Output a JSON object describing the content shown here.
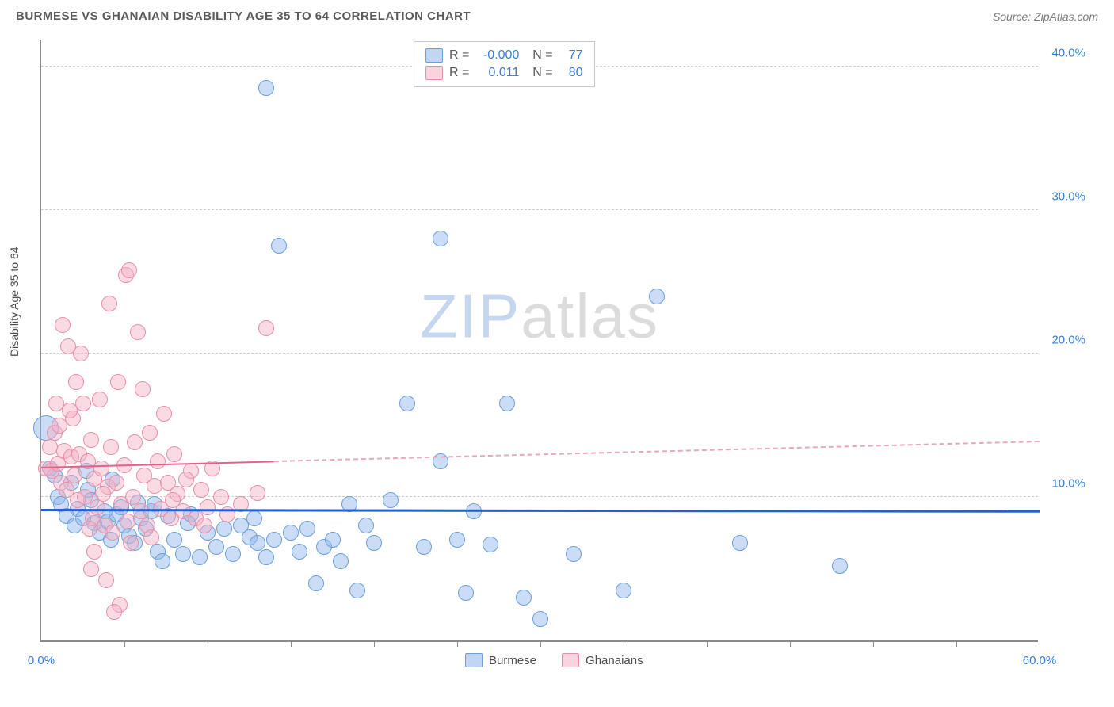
{
  "title": "BURMESE VS GHANAIAN DISABILITY AGE 35 TO 64 CORRELATION CHART",
  "source": "Source: ZipAtlas.com",
  "ylabel": "Disability Age 35 to 64",
  "watermark_a": "ZIP",
  "watermark_b": "atlas",
  "chart": {
    "type": "scatter",
    "xlim": [
      0,
      60
    ],
    "ylim": [
      0,
      42
    ],
    "y_ticks": [
      10,
      20,
      30,
      40
    ],
    "y_tick_labels": [
      "10.0%",
      "20.0%",
      "30.0%",
      "40.0%"
    ],
    "x_end_labels": {
      "min": "0.0%",
      "max": "60.0%"
    },
    "x_minor_ticks": [
      5,
      10,
      15,
      20,
      25,
      30,
      35,
      40,
      45,
      50,
      55
    ],
    "grid_color": "#d0d0d0",
    "background": "#ffffff",
    "axis_color": "#8a8a8a",
    "tick_label_color": "#3b7dd8",
    "point_radius": 10,
    "series": [
      {
        "name": "Burmese",
        "color_fill": "rgba(140,180,235,0.45)",
        "color_stroke": "#6a9fd8",
        "R": "-0.000",
        "N": "77",
        "trend": {
          "y_start": 9.0,
          "y_end": 8.9,
          "x_solid_end": 60,
          "color": "#2860c8"
        },
        "points": [
          [
            0.3,
            14.8,
            16
          ],
          [
            0.5,
            12.0
          ],
          [
            0.8,
            11.5
          ],
          [
            1.0,
            10.0
          ],
          [
            1.2,
            9.5
          ],
          [
            1.5,
            8.7
          ],
          [
            1.8,
            11.0
          ],
          [
            2.0,
            8.0
          ],
          [
            2.2,
            9.2
          ],
          [
            2.5,
            8.5
          ],
          [
            2.8,
            10.5
          ],
          [
            3.0,
            9.8
          ],
          [
            3.2,
            8.2
          ],
          [
            3.5,
            7.5
          ],
          [
            3.8,
            9.0
          ],
          [
            4.0,
            8.3
          ],
          [
            4.2,
            7.0
          ],
          [
            4.5,
            8.8
          ],
          [
            4.8,
            9.3
          ],
          [
            5.0,
            8.0
          ],
          [
            5.3,
            7.3
          ],
          [
            5.6,
            6.8
          ],
          [
            6.0,
            8.5
          ],
          [
            6.3,
            7.8
          ],
          [
            6.6,
            9.0
          ],
          [
            7.0,
            6.2
          ],
          [
            7.3,
            5.5
          ],
          [
            7.6,
            8.7
          ],
          [
            8.0,
            7.0
          ],
          [
            8.5,
            6.0
          ],
          [
            9.0,
            8.8
          ],
          [
            9.5,
            5.8
          ],
          [
            10.0,
            7.5
          ],
          [
            10.5,
            6.5
          ],
          [
            11.0,
            7.8
          ],
          [
            11.5,
            6.0
          ],
          [
            12.0,
            8.0
          ],
          [
            12.5,
            7.2
          ],
          [
            13.0,
            6.8
          ],
          [
            13.5,
            5.8
          ],
          [
            13.5,
            38.5
          ],
          [
            14.0,
            7.0
          ],
          [
            14.3,
            27.5
          ],
          [
            15.0,
            7.5
          ],
          [
            15.5,
            6.2
          ],
          [
            16.0,
            7.8
          ],
          [
            16.5,
            4.0
          ],
          [
            17.0,
            6.5
          ],
          [
            17.5,
            7.0
          ],
          [
            18.5,
            9.5
          ],
          [
            19.0,
            3.5
          ],
          [
            20.0,
            6.8
          ],
          [
            21.0,
            9.8
          ],
          [
            22.0,
            16.5
          ],
          [
            23.0,
            6.5
          ],
          [
            24.0,
            28.0
          ],
          [
            24.0,
            12.5
          ],
          [
            25.0,
            7.0
          ],
          [
            25.5,
            3.3
          ],
          [
            27.0,
            6.7
          ],
          [
            28.0,
            16.5
          ],
          [
            29.0,
            3.0
          ],
          [
            30.0,
            1.5
          ],
          [
            32.0,
            6.0
          ],
          [
            35.0,
            3.5
          ],
          [
            37.0,
            24.0
          ],
          [
            42.0,
            6.8
          ],
          [
            48.0,
            5.2
          ],
          [
            18.0,
            5.5
          ],
          [
            19.5,
            8.0
          ],
          [
            8.8,
            8.2
          ],
          [
            4.3,
            11.2
          ],
          [
            2.7,
            11.8
          ],
          [
            6.8,
            9.5
          ],
          [
            12.8,
            8.5
          ],
          [
            5.8,
            9.6
          ],
          [
            26.0,
            9.0
          ]
        ]
      },
      {
        "name": "Ghanaians",
        "color_fill": "rgba(245,175,195,0.45)",
        "color_stroke": "#e88fa8",
        "R": "0.011",
        "N": "80",
        "trend": {
          "y_start": 12.0,
          "y_end": 13.8,
          "x_solid_end": 14,
          "color": "#e85f8a"
        },
        "points": [
          [
            0.3,
            12.0
          ],
          [
            0.5,
            13.5
          ],
          [
            0.6,
            11.8
          ],
          [
            0.8,
            14.5
          ],
          [
            1.0,
            12.3
          ],
          [
            1.1,
            15.0
          ],
          [
            1.2,
            11.0
          ],
          [
            1.3,
            22.0
          ],
          [
            1.4,
            13.2
          ],
          [
            1.5,
            10.5
          ],
          [
            1.6,
            20.5
          ],
          [
            1.8,
            12.8
          ],
          [
            1.9,
            15.5
          ],
          [
            2.0,
            11.5
          ],
          [
            2.1,
            18.0
          ],
          [
            2.2,
            9.8
          ],
          [
            2.3,
            13.0
          ],
          [
            2.5,
            16.5
          ],
          [
            2.6,
            10.0
          ],
          [
            2.8,
            12.5
          ],
          [
            3.0,
            14.0
          ],
          [
            3.1,
            8.5
          ],
          [
            3.2,
            11.3
          ],
          [
            3.4,
            9.3
          ],
          [
            3.5,
            16.8
          ],
          [
            3.6,
            12.0
          ],
          [
            3.8,
            8.0
          ],
          [
            4.0,
            10.7
          ],
          [
            4.1,
            23.5
          ],
          [
            4.2,
            13.5
          ],
          [
            4.3,
            7.5
          ],
          [
            4.5,
            11.0
          ],
          [
            4.6,
            18.0
          ],
          [
            4.8,
            9.5
          ],
          [
            5.0,
            12.2
          ],
          [
            5.1,
            25.5
          ],
          [
            5.2,
            8.3
          ],
          [
            5.3,
            25.8
          ],
          [
            5.5,
            10.0
          ],
          [
            5.6,
            13.8
          ],
          [
            5.8,
            21.5
          ],
          [
            6.0,
            9.0
          ],
          [
            6.1,
            17.5
          ],
          [
            6.2,
            11.5
          ],
          [
            6.4,
            8.0
          ],
          [
            6.5,
            14.5
          ],
          [
            6.8,
            10.8
          ],
          [
            7.0,
            12.5
          ],
          [
            7.2,
            9.2
          ],
          [
            7.4,
            15.8
          ],
          [
            7.6,
            11.0
          ],
          [
            7.8,
            8.5
          ],
          [
            8.0,
            13.0
          ],
          [
            8.2,
            10.2
          ],
          [
            8.5,
            9.0
          ],
          [
            9.0,
            11.8
          ],
          [
            9.3,
            8.5
          ],
          [
            9.6,
            10.5
          ],
          [
            10.0,
            9.3
          ],
          [
            10.3,
            12.0
          ],
          [
            3.0,
            5.0
          ],
          [
            3.2,
            6.2
          ],
          [
            3.9,
            4.2
          ],
          [
            4.7,
            2.5
          ],
          [
            5.4,
            6.8
          ],
          [
            4.4,
            2.0
          ],
          [
            1.7,
            16.0
          ],
          [
            2.4,
            20.0
          ],
          [
            0.9,
            16.5
          ],
          [
            6.6,
            7.2
          ],
          [
            7.9,
            9.8
          ],
          [
            8.7,
            11.2
          ],
          [
            9.8,
            8.0
          ],
          [
            10.8,
            10.0
          ],
          [
            11.2,
            8.8
          ],
          [
            12.0,
            9.5
          ],
          [
            13.0,
            10.3
          ],
          [
            13.5,
            21.8
          ],
          [
            2.9,
            7.8
          ],
          [
            3.7,
            10.2
          ]
        ]
      }
    ],
    "legend_bottom": [
      "Burmese",
      "Ghanaians"
    ]
  }
}
